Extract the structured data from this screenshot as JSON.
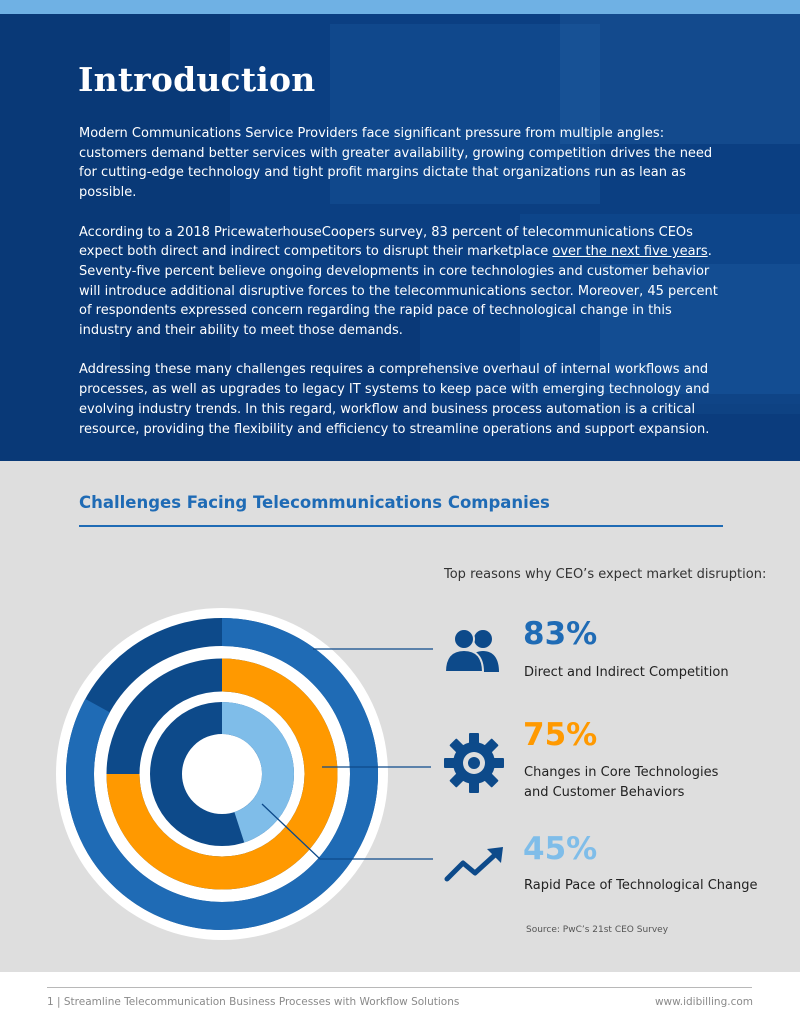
{
  "hero": {
    "title": "Introduction",
    "paragraph1": "Modern Communications Service Providers face significant pressure from multiple angles: customers demand better services with greater availability, growing competition drives the need for cutting-edge technology and tight profit margins dictate that organizations run as lean as possible.",
    "paragraph2_before": "According to a 2018 PricewaterhouseCoopers survey, 83 percent of telecommunications CEOs expect both direct and indirect competitors to disrupt their marketplace ",
    "paragraph2_link": "over the next five years",
    "paragraph2_after": ". Seventy-five percent believe ongoing developments in core technologies and customer behavior will introduce additional disruptive forces to the telecommunications sector. Moreover, 45 percent of respondents expressed concern regarding the rapid pace of technological change in this industry and their ability to meet those demands.",
    "paragraph3": "Addressing these many challenges requires a comprehensive overhaul of internal workflows and processes, as well as upgrades to legacy IT systems to keep pace with emerging technology and evolving industry trends. In this regard, workflow and business process automation is a critical resource, providing the flexibility and efficiency to streamline operations and support expansion."
  },
  "section": {
    "title": "Challenges Facing Telecommunications Companies",
    "reasons_label": "Top reasons why CEO’s expect market disruption:",
    "source": "Source: PwC’s 21st CEO Survey"
  },
  "stats": [
    {
      "percent": "83%",
      "label_line1": "Direct and Indirect Competition",
      "label_line2": "",
      "icon": "people-icon",
      "color": "#1f6bb5"
    },
    {
      "percent": "75%",
      "label_line1": "Changes in Core Technologies",
      "label_line2": "and Customer Behaviors",
      "icon": "gear-icon",
      "color": "#ff9900"
    },
    {
      "percent": "45%",
      "label_line1": "Rapid Pace of Technological Change",
      "label_line2": "",
      "icon": "trend-up-icon",
      "color": "#7fbde9"
    }
  ],
  "chart_data": {
    "type": "radial-bar",
    "categories": [
      "Direct and Indirect Competition",
      "Changes in Core Technologies and Customer Behaviors",
      "Rapid Pace of Technological Change"
    ],
    "values": [
      83,
      75,
      45
    ],
    "unit": "%",
    "max": 100,
    "ring_colors": [
      "#1f6bb5",
      "#ff9900",
      "#7fbde9"
    ],
    "track_color": "#0d4a8a"
  },
  "footer": {
    "left": "1 | Streamline Telecommunication Business Processes with Workflow Solutions",
    "right": "www.idibilling.com"
  }
}
